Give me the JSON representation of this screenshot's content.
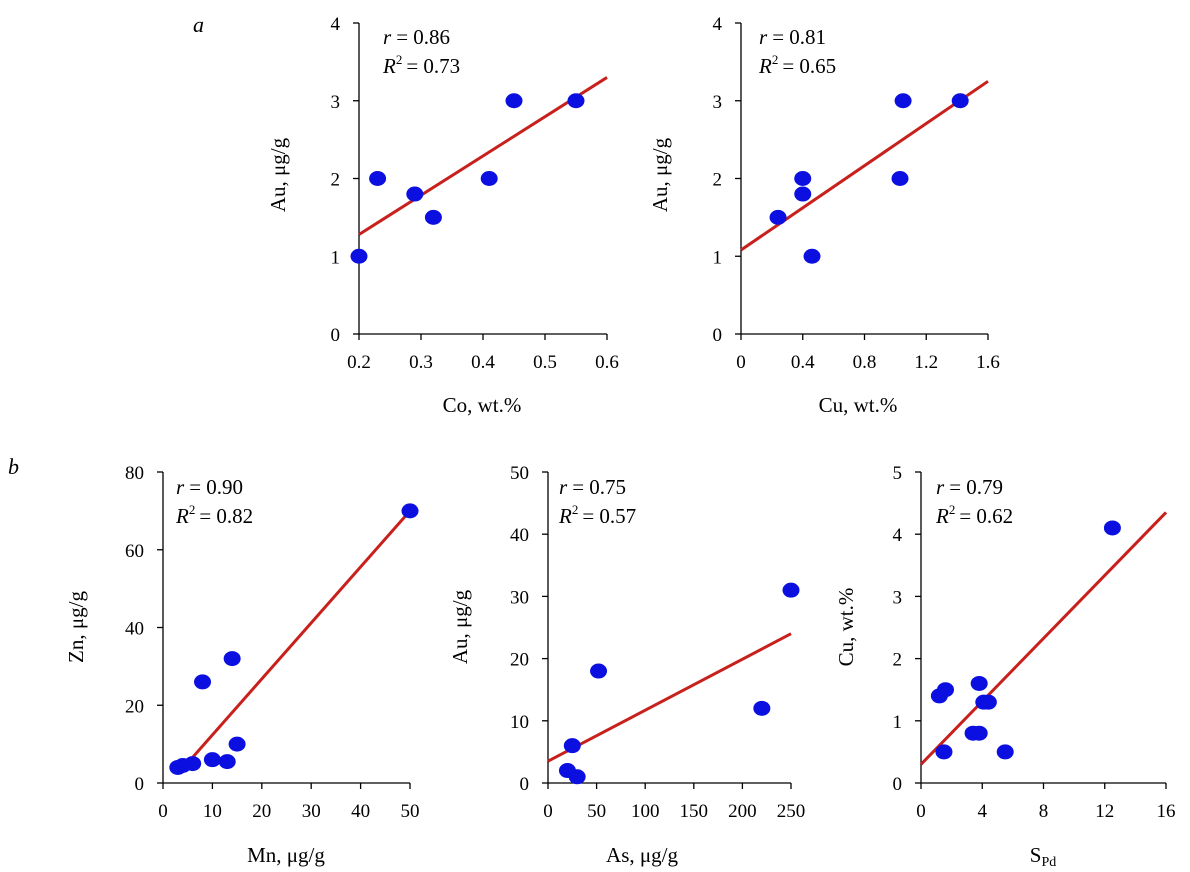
{
  "panel_labels": {
    "a": "a",
    "b": "b"
  },
  "colors": {
    "points": "#0b10e0",
    "fit_line": "#c8201c",
    "axis": "#000000"
  },
  "chart_data": [
    {
      "id": "a1",
      "type": "scatter",
      "xlabel": "Co, wt.%",
      "ylabel": "Au, μg/g",
      "xlim": [
        0.2,
        0.6
      ],
      "ylim": [
        0,
        4
      ],
      "xticks": [
        0.2,
        0.3,
        0.4,
        0.5,
        0.6
      ],
      "xtick_labels": [
        "0.2",
        "0.3",
        "0.4",
        "0.5",
        "0.6"
      ],
      "yticks": [
        0,
        1,
        2,
        3,
        4
      ],
      "ytick_labels": [
        "0",
        "1",
        "2",
        "3",
        "4"
      ],
      "r_text": "= 0.86",
      "r2_text": "= 0.73",
      "points": [
        [
          0.2,
          1.0
        ],
        [
          0.23,
          2.0
        ],
        [
          0.29,
          1.8
        ],
        [
          0.32,
          1.5
        ],
        [
          0.41,
          2.0
        ],
        [
          0.45,
          3.0
        ],
        [
          0.55,
          3.0
        ]
      ],
      "fit_line": [
        [
          0.2,
          1.28
        ],
        [
          0.6,
          3.3
        ]
      ]
    },
    {
      "id": "a2",
      "type": "scatter",
      "xlabel": "Cu, wt.%",
      "ylabel": "Au, μg/g",
      "xlim": [
        0,
        1.6
      ],
      "ylim": [
        0,
        4
      ],
      "xticks": [
        0,
        0.4,
        0.8,
        1.2,
        1.6
      ],
      "xtick_labels": [
        "0",
        "0.4",
        "0.8",
        "1.2",
        "1.6"
      ],
      "yticks": [
        0,
        1,
        2,
        3,
        4
      ],
      "ytick_labels": [
        "0",
        "1",
        "2",
        "3",
        "4"
      ],
      "r_text": "= 0.81",
      "r2_text": "= 0.65",
      "points": [
        [
          0.24,
          1.5
        ],
        [
          0.4,
          2.0
        ],
        [
          0.4,
          1.8
        ],
        [
          0.46,
          1.0
        ],
        [
          1.03,
          2.0
        ],
        [
          1.05,
          3.0
        ],
        [
          1.42,
          3.0
        ]
      ],
      "fit_line": [
        [
          0,
          1.08
        ],
        [
          1.6,
          3.25
        ]
      ]
    },
    {
      "id": "b1",
      "type": "scatter",
      "xlabel": "Mn, μg/g",
      "ylabel": "Zn, μg/g",
      "xlim": [
        0,
        50
      ],
      "ylim": [
        0,
        80
      ],
      "xticks": [
        0,
        10,
        20,
        30,
        40,
        50
      ],
      "xtick_labels": [
        "0",
        "10",
        "20",
        "30",
        "40",
        "50"
      ],
      "yticks": [
        0,
        20,
        40,
        60,
        80
      ],
      "ytick_labels": [
        "0",
        "20",
        "40",
        "60",
        "80"
      ],
      "r_text": "= 0.90",
      "r2_text": "= 0.82",
      "points": [
        [
          3,
          4
        ],
        [
          4,
          4.5
        ],
        [
          6,
          5
        ],
        [
          8,
          26
        ],
        [
          10,
          6
        ],
        [
          13,
          5.5
        ],
        [
          14,
          32
        ],
        [
          15,
          10
        ],
        [
          50,
          70
        ]
      ],
      "fit_line": [
        [
          3.5,
          3
        ],
        [
          50,
          70
        ]
      ]
    },
    {
      "id": "b2",
      "type": "scatter",
      "xlabel": "As, μg/g",
      "ylabel": "Au, μg/g",
      "xlim": [
        0,
        250
      ],
      "ylim": [
        0,
        50
      ],
      "xticks": [
        0,
        50,
        100,
        150,
        200,
        250
      ],
      "xtick_labels": [
        "0",
        "50",
        "100",
        "150",
        "200",
        "250"
      ],
      "yticks": [
        0,
        10,
        20,
        30,
        40,
        50
      ],
      "ytick_labels": [
        "0",
        "10",
        "20",
        "30",
        "40",
        "50"
      ],
      "r_text": "= 0.75",
      "r2_text": "= 0.57",
      "points": [
        [
          20,
          2
        ],
        [
          25,
          6
        ],
        [
          30,
          1
        ],
        [
          52,
          18
        ],
        [
          220,
          12
        ],
        [
          250,
          31
        ]
      ],
      "fit_line": [
        [
          0,
          3.5
        ],
        [
          250,
          24
        ]
      ]
    },
    {
      "id": "b3",
      "type": "scatter",
      "xlabel_main": "S",
      "xlabel_sub": "Pd",
      "ylabel": "Cu, wt.%",
      "xlim": [
        0,
        16
      ],
      "ylim": [
        0,
        5
      ],
      "xticks": [
        0,
        4,
        8,
        12,
        16
      ],
      "xtick_labels": [
        "0",
        "4",
        "8",
        "12",
        "16"
      ],
      "yticks": [
        0,
        1,
        2,
        3,
        4,
        5
      ],
      "ytick_labels": [
        "0",
        "1",
        "2",
        "3",
        "4",
        "5"
      ],
      "r_text": "= 0.79",
      "r2_text": "= 0.62",
      "points": [
        [
          1.2,
          1.4
        ],
        [
          1.5,
          0.5
        ],
        [
          1.6,
          1.5
        ],
        [
          3.4,
          0.8
        ],
        [
          3.8,
          0.8
        ],
        [
          3.8,
          1.6
        ],
        [
          4.1,
          1.3
        ],
        [
          4.4,
          1.3
        ],
        [
          5.5,
          0.5
        ],
        [
          12.5,
          4.1
        ]
      ],
      "fit_line": [
        [
          0,
          0.3
        ],
        [
          16,
          4.35
        ]
      ]
    }
  ]
}
